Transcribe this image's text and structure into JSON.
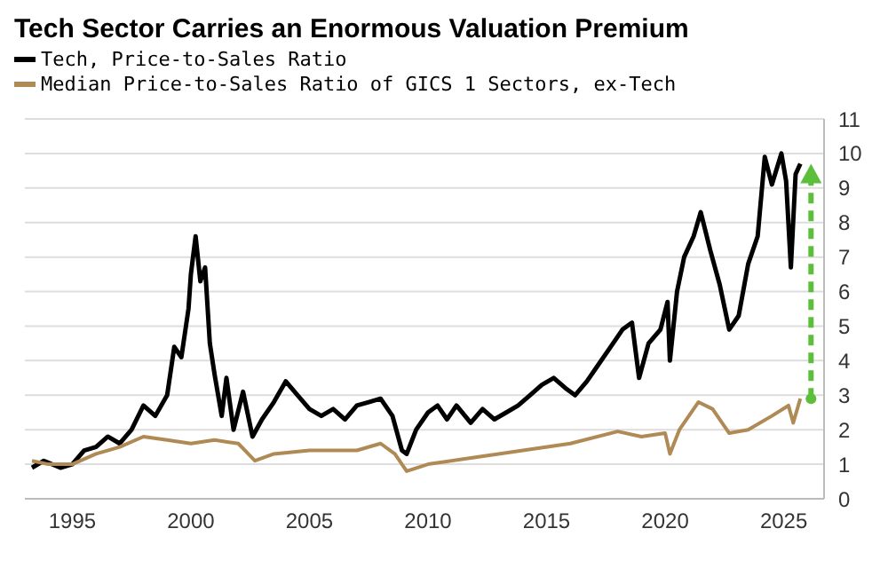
{
  "chart_data": {
    "type": "line",
    "title": "Tech Sector Carries an Enormous Valuation Premium",
    "xlim": [
      1993,
      2026.7
    ],
    "xticks": [
      1995,
      2000,
      2005,
      2010,
      2015,
      2020,
      2025
    ],
    "ylim": [
      0,
      11
    ],
    "yticks": [
      0,
      1,
      2,
      3,
      4,
      5,
      6,
      7,
      8,
      9,
      10,
      11
    ],
    "grid": "y",
    "legend": "top left",
    "marker": "none",
    "line_style": "solid",
    "series": [
      {
        "name": "Tech, Price-to-Sales Ratio",
        "color": "#000000",
        "x": [
          1993.3,
          1993.8,
          1994.5,
          1995,
          1995.5,
          1996,
          1996.5,
          1997,
          1997.5,
          1998,
          1998.5,
          1999,
          1999.3,
          1999.6,
          1999.9,
          2000.0,
          2000.2,
          2000.4,
          2000.6,
          2000.8,
          2001.0,
          2001.3,
          2001.5,
          2001.8,
          2002.2,
          2002.6,
          2003,
          2003.5,
          2004,
          2004.5,
          2005,
          2005.5,
          2006,
          2006.5,
          2007,
          2007.5,
          2008,
          2008.5,
          2008.9,
          2009.1,
          2009.5,
          2010,
          2010.4,
          2010.8,
          2011.2,
          2011.8,
          2012.3,
          2012.8,
          2013.3,
          2013.8,
          2014.3,
          2014.8,
          2015.3,
          2015.8,
          2016.2,
          2016.7,
          2017.2,
          2017.7,
          2018.2,
          2018.6,
          2018.9,
          2019.3,
          2019.8,
          2020.1,
          2020.2,
          2020.5,
          2020.8,
          2021.2,
          2021.5,
          2021.9,
          2022.3,
          2022.7,
          2023.1,
          2023.5,
          2023.9,
          2024.2,
          2024.5,
          2024.9,
          2025.1,
          2025.3,
          2025.5,
          2025.7
        ],
        "values": [
          0.9,
          1.1,
          0.9,
          1.0,
          1.4,
          1.5,
          1.8,
          1.6,
          2.0,
          2.7,
          2.4,
          3.0,
          4.4,
          4.1,
          5.5,
          6.5,
          7.6,
          6.3,
          6.7,
          4.5,
          3.6,
          2.4,
          3.5,
          2.0,
          3.1,
          1.8,
          2.3,
          2.8,
          3.4,
          3.0,
          2.6,
          2.4,
          2.6,
          2.3,
          2.7,
          2.8,
          2.9,
          2.4,
          1.4,
          1.3,
          2.0,
          2.5,
          2.7,
          2.3,
          2.7,
          2.2,
          2.6,
          2.3,
          2.5,
          2.7,
          3.0,
          3.3,
          3.5,
          3.2,
          3.0,
          3.4,
          3.9,
          4.4,
          4.9,
          5.1,
          3.5,
          4.5,
          4.9,
          5.7,
          4.0,
          6.0,
          7.0,
          7.6,
          8.3,
          7.2,
          6.2,
          4.9,
          5.3,
          6.8,
          7.6,
          9.9,
          9.1,
          10.0,
          9.2,
          6.7,
          9.4,
          9.7
        ]
      },
      {
        "name": "Median Price-to-Sales Ratio of GICS 1 Sectors, ex-Tech",
        "color": "#b08a55",
        "x": [
          1993.3,
          1994,
          1995,
          1996,
          1997,
          1998,
          1999,
          2000,
          2001,
          2002,
          2002.7,
          2003.5,
          2005,
          2007,
          2008,
          2008.6,
          2009.1,
          2010,
          2012,
          2014,
          2016,
          2018,
          2019,
          2020,
          2020.2,
          2020.6,
          2021.4,
          2022,
          2022.7,
          2023.5,
          2024.5,
          2025.2,
          2025.4,
          2025.7
        ],
        "values": [
          1.1,
          1.0,
          1.0,
          1.3,
          1.5,
          1.8,
          1.7,
          1.6,
          1.7,
          1.6,
          1.1,
          1.3,
          1.4,
          1.4,
          1.6,
          1.3,
          0.8,
          1.0,
          1.2,
          1.4,
          1.6,
          1.95,
          1.8,
          1.9,
          1.3,
          2.0,
          2.8,
          2.6,
          1.9,
          2.0,
          2.4,
          2.7,
          2.2,
          2.9
        ]
      }
    ]
  }
}
